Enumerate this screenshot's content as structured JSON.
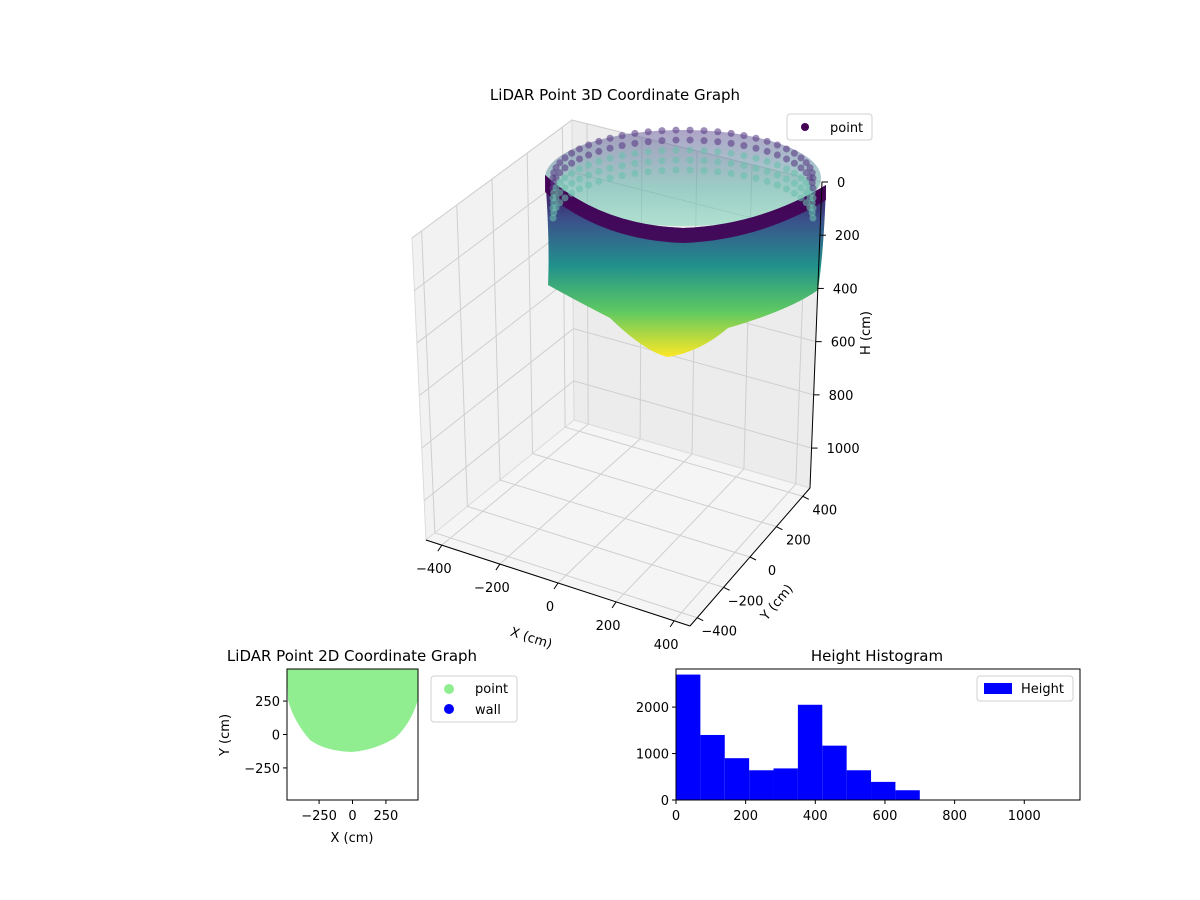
{
  "chart_data": [
    {
      "type": "scatter",
      "title": "LiDAR Point 3D Coordinate Graph",
      "xlabel": "X (cm)",
      "ylabel": "Y (cm)",
      "zlabel": "H (cm)",
      "xticks": [
        "−400",
        "−200",
        "0",
        "200",
        "400"
      ],
      "yticks": [
        "−400",
        "−200",
        "0",
        "200",
        "400"
      ],
      "zticks": [
        "0",
        "200",
        "400",
        "600",
        "800",
        "1000"
      ],
      "xlim": [
        -450,
        450
      ],
      "ylim": [
        -450,
        450
      ],
      "zlim": [
        0,
        1150
      ],
      "z_inverted": true,
      "colormap": "viridis",
      "legend": [
        "point"
      ],
      "legend_position": "top-right",
      "grid": true
    },
    {
      "type": "scatter",
      "title": "LiDAR Point 2D Coordinate Graph",
      "xlabel": "X (cm)",
      "ylabel": "Y (cm)",
      "xticks": [
        "−250",
        "0",
        "250"
      ],
      "yticks": [
        "250",
        "0",
        "−250"
      ],
      "xlim": [
        -490,
        490
      ],
      "ylim": [
        -490,
        490
      ],
      "series": [
        {
          "name": "point",
          "color": "#90ee90"
        },
        {
          "name": "wall",
          "color": "#0000ff"
        }
      ],
      "legend_position": "outside-right"
    },
    {
      "type": "bar",
      "title": "Height Histogram",
      "xticks": [
        "0",
        "200",
        "400",
        "600",
        "800",
        "1000"
      ],
      "yticks": [
        "0",
        "1000",
        "2000"
      ],
      "xlim": [
        0,
        1160
      ],
      "ylim": [
        0,
        2820
      ],
      "bin_edges": [
        0,
        70,
        140,
        210,
        280,
        350,
        420,
        490,
        560,
        630,
        700
      ],
      "values": [
        2700,
        1400,
        900,
        640,
        680,
        2050,
        1170,
        640,
        390,
        210
      ],
      "series": [
        {
          "name": "Height",
          "color": "#0000ff"
        }
      ],
      "legend_position": "top-right"
    }
  ]
}
